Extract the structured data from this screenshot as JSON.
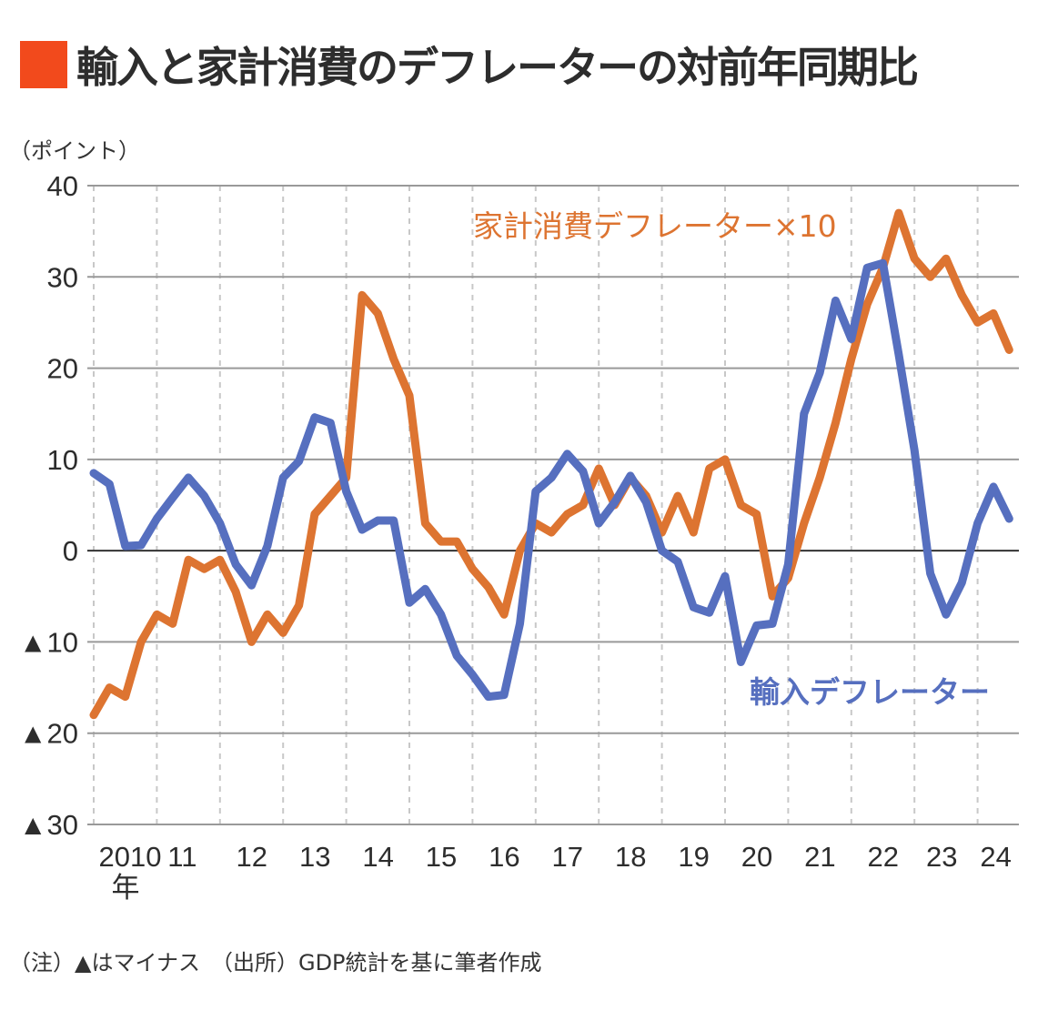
{
  "title": "輸入と家計消費のデフレーターの対前年同期比",
  "unit_label": "（ポイント）",
  "footnote": "（注）▲はマイナス　（出所）GDP統計を基に筆者作成",
  "colors": {
    "title_marker": "#f24a1c",
    "household": "#dd7431",
    "import": "#566fbf",
    "grid": "#999999",
    "zero_line": "#333333"
  },
  "chart_data": {
    "type": "line",
    "title": "輸入と家計消費のデフレーターの対前年同期比",
    "ylabel": "（ポイント）",
    "xlabel": "",
    "ylim": [
      -30,
      40
    ],
    "yticks": [
      40,
      30,
      20,
      10,
      0,
      -10,
      -20,
      -30
    ],
    "ytick_labels": [
      "40",
      "30",
      "20",
      "10",
      "0",
      "▲10",
      "▲20",
      "▲30"
    ],
    "x_start": "2010Q1",
    "frequency": "quarterly",
    "xtick_labels": [
      "2010",
      "11",
      "12",
      "13",
      "14",
      "15",
      "16",
      "17",
      "18",
      "19",
      "20",
      "21",
      "22",
      "23",
      "24"
    ],
    "xtick_sub_label": "年",
    "grid": "horizontal solid, vertical dashed",
    "series": [
      {
        "name": "家計消費デフレーター×10",
        "color": "#dd7431",
        "values": [
          -18,
          -15,
          -16,
          -10,
          -7,
          -8,
          -1,
          -2,
          -1,
          -4.5,
          -10,
          -7,
          -9,
          -6,
          4,
          6,
          8,
          28,
          26,
          21,
          17,
          3,
          1,
          1,
          -2,
          -4,
          -7,
          0,
          3,
          2,
          4,
          5,
          9,
          5,
          8,
          6,
          2,
          6,
          2,
          9,
          10,
          5,
          4,
          -5,
          -3,
          3,
          8,
          14,
          21,
          27,
          31,
          37,
          32,
          30,
          32,
          28,
          25,
          26,
          22
        ]
      },
      {
        "name": "輸入デフレーター",
        "color": "#566fbf",
        "values": [
          8.5,
          7.3,
          0.5,
          0.6,
          3.5,
          5.8,
          8,
          6,
          3,
          -1.5,
          -3.8,
          0.5,
          8,
          9.8,
          14.6,
          14,
          6.5,
          2.3,
          3.3,
          3.3,
          -5.7,
          -4.2,
          -7,
          -11.5,
          -13.6,
          -16,
          -15.8,
          -8,
          6.5,
          8,
          10.6,
          8.7,
          3,
          5.3,
          8.2,
          5.3,
          0,
          -1.2,
          -6.2,
          -6.8,
          -2.8,
          -12.2,
          -8.2,
          -8,
          -1.5,
          15,
          19.5,
          27.4,
          23.2,
          31,
          31.5,
          21.5,
          11,
          -2.5,
          -7,
          -3.5,
          3,
          7,
          3.5
        ]
      }
    ],
    "annotations": [
      {
        "text": "家計消費デフレーター×10",
        "series": "household"
      },
      {
        "text": "輸入デフレーター",
        "series": "import"
      }
    ]
  }
}
